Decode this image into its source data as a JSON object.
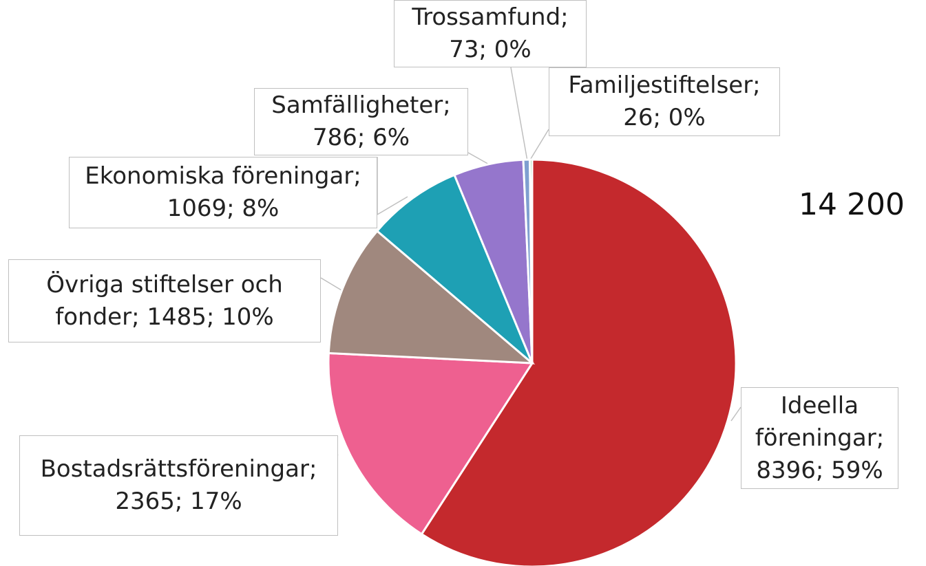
{
  "chart_data": {
    "type": "pie",
    "categories": [
      "Ideella föreningar",
      "Bostadsrättsföreningar",
      "Övriga stiftelser och fonder",
      "Ekonomiska föreningar",
      "Samfälligheter",
      "Trossamfund",
      "Familjestiftelser"
    ],
    "values": [
      8396,
      2365,
      1485,
      1069,
      786,
      73,
      26
    ],
    "value_labels": [
      "Ideella föreningar; 8396; 59%",
      "Bostadsrättsföreningar; 2365; 17%",
      "Övriga stiftelser och fonder; 1485; 10%",
      "Ekonomiska föreningar; 1069; 8%",
      "Samfälligheter; 786; 6%",
      "Trossamfund; 73; 0%",
      "Familjestiftelser; 26; 0%"
    ],
    "colors": [
      "#c4292d",
      "#ee6090",
      "#a0887e",
      "#1ea0b4",
      "#9576cc",
      "#7f9fd0",
      "#3aa04a"
    ],
    "annotation": "14 200"
  }
}
